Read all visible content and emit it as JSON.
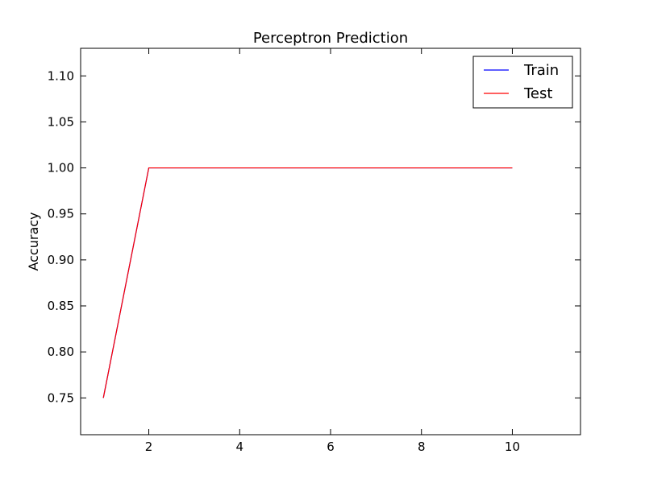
{
  "chart_data": {
    "type": "line",
    "title": "Perceptron Prediction",
    "xlabel": "",
    "ylabel": "Accuracy",
    "xlim": [
      0.5,
      11.5
    ],
    "ylim": [
      0.71,
      1.13
    ],
    "xticks": [
      2,
      4,
      6,
      8,
      10
    ],
    "yticks": [
      0.75,
      0.8,
      0.85,
      0.9,
      0.95,
      1.0,
      1.05,
      1.1
    ],
    "xtick_labels": [
      "2",
      "4",
      "6",
      "8",
      "10"
    ],
    "ytick_labels": [
      "0.75",
      "0.80",
      "0.85",
      "0.90",
      "0.95",
      "1.00",
      "1.05",
      "1.10"
    ],
    "x": [
      1,
      2,
      3,
      4,
      5,
      6,
      7,
      8,
      9,
      10
    ],
    "series": [
      {
        "name": "Train",
        "color": "#0000ff",
        "values": [
          0.75,
          1.0,
          1.0,
          1.0,
          1.0,
          1.0,
          1.0,
          1.0,
          1.0,
          1.0
        ]
      },
      {
        "name": "Test",
        "color": "#ff0000",
        "values": [
          0.75,
          1.0,
          1.0,
          1.0,
          1.0,
          1.0,
          1.0,
          1.0,
          1.0,
          1.0
        ]
      }
    ],
    "legend": {
      "position": "top-right"
    },
    "grid": false
  }
}
